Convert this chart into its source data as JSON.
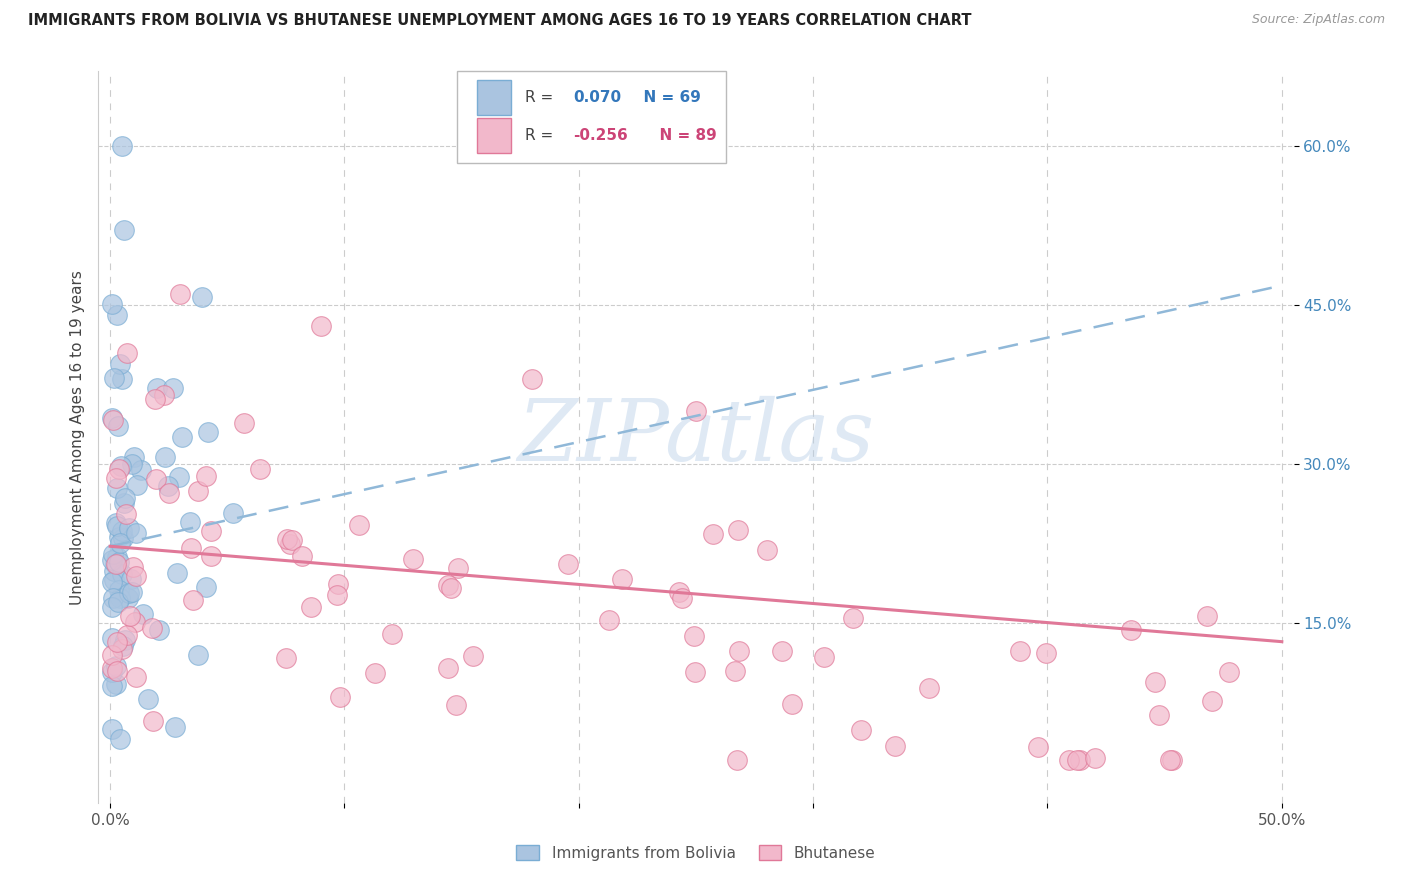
{
  "title": "IMMIGRANTS FROM BOLIVIA VS BHUTANESE UNEMPLOYMENT AMONG AGES 16 TO 19 YEARS CORRELATION CHART",
  "source": "Source: ZipAtlas.com",
  "ylabel": "Unemployment Among Ages 16 to 19 years",
  "ytick_labels": [
    "15.0%",
    "30.0%",
    "45.0%",
    "60.0%"
  ],
  "ytick_positions": [
    0.15,
    0.3,
    0.45,
    0.6
  ],
  "xlim": [
    -0.005,
    0.505
  ],
  "ylim": [
    -0.02,
    0.67
  ],
  "bolivia_R": 0.07,
  "bolivia_N": 69,
  "bhutan_R": -0.256,
  "bhutan_N": 89,
  "bolivia_color": "#aac4e0",
  "bolivia_edge": "#7aadd4",
  "bhutan_color": "#f2b8cb",
  "bhutan_edge": "#e07898",
  "bolivia_line_color": "#90b8d8",
  "bhutan_line_color": "#e07898",
  "watermark": "ZIPatlas",
  "legend_bolivia_label": "Immigrants from Bolivia",
  "legend_bhutan_label": "Bhutanese",
  "bolivia_line_start_y": 0.222,
  "bolivia_line_end_y": 0.468,
  "bhutan_line_start_y": 0.222,
  "bhutan_line_end_y": 0.132
}
